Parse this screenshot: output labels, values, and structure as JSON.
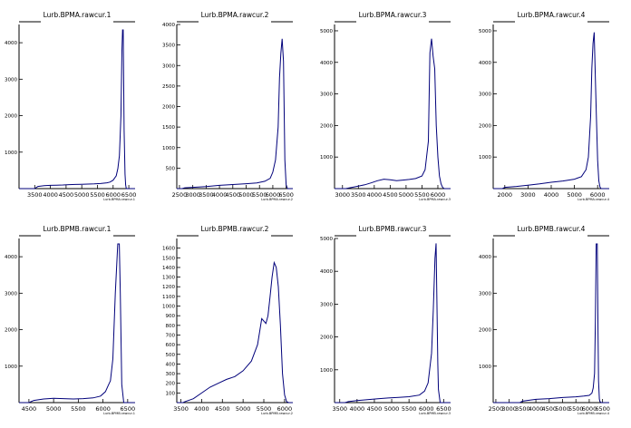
{
  "chart_data": [
    {
      "type": "line",
      "title": "Lurb.BPMA.rawcur.1",
      "xlabel": "Lurb.BPMA.rawcur.1",
      "xlim": [
        3000,
        6700
      ],
      "ylim": [
        0,
        4500
      ],
      "xticks": [
        3500,
        4000,
        4500,
        5000,
        5500,
        6000,
        6500
      ],
      "xtick_labels": [
        "3500",
        "4000",
        "4500",
        "5000",
        "5500",
        "6000",
        "6500"
      ],
      "yticks": [
        1000,
        2000,
        3000,
        4000
      ],
      "ytick_labels": [
        "1000",
        "2000",
        "3000",
        "4000"
      ],
      "series": [
        {
          "x": [
            3000,
            3500,
            3600,
            3800,
            4000,
            4200,
            4400,
            4600,
            4800,
            5000,
            5200,
            5400,
            5600,
            5800,
            5900,
            6000,
            6100,
            6150,
            6200,
            6250,
            6280,
            6300,
            6320,
            6350,
            6380,
            6400,
            6420,
            6450,
            6700
          ],
          "y": [
            0,
            0,
            60,
            80,
            90,
            95,
            100,
            110,
            115,
            120,
            125,
            130,
            140,
            160,
            180,
            230,
            350,
            550,
            900,
            2000,
            3800,
            4350,
            4350,
            1600,
            400,
            100,
            0,
            0,
            0
          ]
        }
      ]
    },
    {
      "type": "line",
      "title": "Lurb.BPMA.rawcur.2",
      "xlabel": "Lurb.BPMA.rawcur.2",
      "xlim": [
        2400,
        6750
      ],
      "ylim": [
        0,
        4000
      ],
      "xticks": [
        2500,
        3000,
        3500,
        4000,
        4500,
        5000,
        5500,
        6000,
        6500
      ],
      "xtick_labels": [
        "2500",
        "3000",
        "3500",
        "4000",
        "4500",
        "5000",
        "5500",
        "6000",
        "6500"
      ],
      "yticks": [
        500,
        1000,
        1500,
        2000,
        2500,
        3000,
        3500,
        4000
      ],
      "ytick_labels": [
        "500",
        "1000",
        "1500",
        "2000",
        "2500",
        "3000",
        "3500",
        "4000"
      ],
      "series": [
        {
          "x": [
            2400,
            2600,
            2700,
            3000,
            3500,
            4000,
            4500,
            5000,
            5400,
            5700,
            5900,
            6000,
            6100,
            6200,
            6250,
            6300,
            6350,
            6400,
            6450,
            6500,
            6550,
            6750
          ],
          "y": [
            0,
            0,
            20,
            30,
            50,
            80,
            100,
            120,
            140,
            180,
            250,
            400,
            700,
            1500,
            2700,
            3300,
            3650,
            3100,
            700,
            100,
            0,
            0
          ]
        }
      ]
    },
    {
      "type": "line",
      "title": "Lurb.BPMA.rawcur.3",
      "xlabel": "Lurb.BPMA.rawcur.3",
      "xlim": [
        2750,
        6400
      ],
      "ylim": [
        0,
        5200
      ],
      "xticks": [
        3000,
        3500,
        4000,
        4500,
        5000,
        5500,
        6000
      ],
      "xtick_labels": [
        "3000",
        "3500",
        "4000",
        "4500",
        "5000",
        "5500",
        "6000"
      ],
      "yticks": [
        1000,
        2000,
        3000,
        4000,
        5000
      ],
      "ytick_labels": [
        "1000",
        "2000",
        "3000",
        "4000",
        "5000"
      ],
      "series": [
        {
          "x": [
            2750,
            3100,
            3300,
            3500,
            3700,
            3900,
            4100,
            4300,
            4500,
            4700,
            4900,
            5100,
            5300,
            5500,
            5600,
            5700,
            5750,
            5800,
            5850,
            5900,
            5950,
            6000,
            6050,
            6100,
            6150,
            6200,
            6400
          ],
          "y": [
            0,
            0,
            40,
            80,
            120,
            180,
            250,
            300,
            280,
            250,
            270,
            290,
            320,
            400,
            600,
            1500,
            4300,
            4750,
            4200,
            3800,
            2000,
            1000,
            400,
            150,
            40,
            0,
            0
          ]
        }
      ]
    },
    {
      "type": "line",
      "title": "Lurb.BPMA.rawcur.4",
      "xlabel": "Lurb.BPMA.rawcur.4",
      "xlim": [
        1500,
        6500
      ],
      "ylim": [
        0,
        5200
      ],
      "xticks": [
        2000,
        3000,
        4000,
        5000,
        6000
      ],
      "xtick_labels": [
        "2000",
        "3000",
        "4000",
        "5000",
        "6000"
      ],
      "yticks": [
        1000,
        2000,
        3000,
        4000,
        5000
      ],
      "ytick_labels": [
        "1000",
        "2000",
        "3000",
        "4000",
        "5000"
      ],
      "series": [
        {
          "x": [
            1500,
            1900,
            2000,
            2500,
            3000,
            3500,
            4000,
            4500,
            5000,
            5300,
            5500,
            5600,
            5700,
            5750,
            5800,
            5850,
            5900,
            5950,
            6000,
            6050,
            6100,
            6150,
            6500
          ],
          "y": [
            0,
            0,
            40,
            70,
            110,
            150,
            200,
            240,
            300,
            380,
            600,
            1000,
            2300,
            3800,
            4600,
            4950,
            3600,
            2200,
            900,
            250,
            50,
            0,
            0
          ]
        }
      ]
    },
    {
      "type": "line",
      "title": "Lurb.BPMB.rawcur.1",
      "xlabel": "Lurb.BPMB.rawcur.1",
      "xlim": [
        4300,
        6650
      ],
      "ylim": [
        0,
        4500
      ],
      "xticks": [
        4500,
        5000,
        5500,
        6000,
        6500
      ],
      "xtick_labels": [
        "4500",
        "5000",
        "5500",
        "6000",
        "6500"
      ],
      "yticks": [
        1000,
        2000,
        3000,
        4000
      ],
      "ytick_labels": [
        "1000",
        "2000",
        "3000",
        "4000"
      ],
      "series": [
        {
          "x": [
            4300,
            4500,
            4600,
            4800,
            5000,
            5200,
            5400,
            5600,
            5800,
            5950,
            6050,
            6100,
            6150,
            6200,
            6250,
            6300,
            6330,
            6350,
            6380,
            6420,
            6650
          ],
          "y": [
            0,
            0,
            60,
            100,
            120,
            110,
            100,
            110,
            130,
            180,
            300,
            450,
            600,
            1200,
            3000,
            4350,
            4350,
            3000,
            500,
            0,
            0
          ]
        }
      ]
    },
    {
      "type": "line",
      "title": "Lurb.BPMB.rawcur.2",
      "xlabel": "Lurb.BPMB.rawcur.2",
      "xlim": [
        3400,
        6200
      ],
      "ylim": [
        0,
        1700
      ],
      "xticks": [
        3500,
        4000,
        4500,
        5000,
        5500,
        6000
      ],
      "xtick_labels": [
        "3500",
        "4000",
        "4500",
        "5000",
        "5500",
        "6000"
      ],
      "yticks": [
        100,
        200,
        300,
        400,
        500,
        600,
        700,
        800,
        900,
        1000,
        1100,
        1200,
        1300,
        1400,
        1500,
        1600
      ],
      "ytick_labels": [
        "100",
        "200",
        "300",
        "400",
        "500",
        "600",
        "700",
        "800",
        "900",
        "1000",
        "1100",
        "1200",
        "1300",
        "1400",
        "1500",
        "1600"
      ],
      "series": [
        {
          "x": [
            3400,
            3550,
            3600,
            3800,
            4000,
            4200,
            4400,
            4600,
            4800,
            5000,
            5200,
            5350,
            5450,
            5550,
            5600,
            5650,
            5700,
            5750,
            5800,
            5850,
            5900,
            5950,
            6000,
            6050,
            6100,
            6200
          ],
          "y": [
            0,
            0,
            10,
            40,
            100,
            160,
            200,
            240,
            270,
            330,
            430,
            600,
            870,
            820,
            900,
            1100,
            1300,
            1450,
            1400,
            1200,
            800,
            300,
            80,
            10,
            0,
            0
          ]
        }
      ]
    },
    {
      "type": "line",
      "title": "Lurb.BPMB.rawcur.3",
      "xlabel": "Lurb.BPMB.rawcur.3",
      "xlim": [
        3350,
        6700
      ],
      "ylim": [
        0,
        5000
      ],
      "xticks": [
        3500,
        4000,
        4500,
        5000,
        5500,
        6000,
        6500
      ],
      "xtick_labels": [
        "3500",
        "4000",
        "4500",
        "5000",
        "5500",
        "6000",
        "6500"
      ],
      "yticks": [
        1000,
        2000,
        3000,
        4000,
        5000
      ],
      "ytick_labels": [
        "1000",
        "2000",
        "3000",
        "4000",
        "5000"
      ],
      "series": [
        {
          "x": [
            3350,
            3650,
            3750,
            4000,
            4300,
            4600,
            4900,
            5200,
            5500,
            5800,
            5950,
            6050,
            6150,
            6200,
            6250,
            6280,
            6300,
            6330,
            6350,
            6400,
            6700
          ],
          "y": [
            0,
            0,
            30,
            60,
            90,
            120,
            140,
            160,
            180,
            230,
            350,
            600,
            1500,
            2800,
            4400,
            4850,
            3500,
            1200,
            400,
            0,
            0
          ]
        }
      ]
    },
    {
      "type": "line",
      "title": "Lurb.BPMB.rawcur.4",
      "xlabel": "Lurb.BPMB.rawcur.4",
      "xlim": [
        2400,
        6750
      ],
      "ylim": [
        0,
        4500
      ],
      "xticks": [
        2500,
        3000,
        3500,
        4000,
        4500,
        5000,
        5500,
        6000,
        6500
      ],
      "xtick_labels": [
        "2500",
        "3000",
        "3500",
        "4000",
        "4500",
        "5000",
        "5500",
        "6000",
        "6500"
      ],
      "yticks": [
        1000,
        2000,
        3000,
        4000
      ],
      "ytick_labels": [
        "1000",
        "2000",
        "3000",
        "4000"
      ],
      "series": [
        {
          "x": [
            2400,
            3400,
            3500,
            4000,
            4500,
            5000,
            5500,
            5800,
            6000,
            6100,
            6150,
            6200,
            6230,
            6260,
            6300,
            6330,
            6350,
            6380,
            6400,
            6450,
            6750
          ],
          "y": [
            0,
            0,
            40,
            90,
            110,
            140,
            160,
            180,
            200,
            260,
            400,
            800,
            2200,
            4350,
            4350,
            2000,
            600,
            100,
            30,
            0,
            0
          ]
        }
      ]
    }
  ],
  "colors": {
    "line": "#00007a",
    "axis": "#000000",
    "background": "#ffffff"
  }
}
